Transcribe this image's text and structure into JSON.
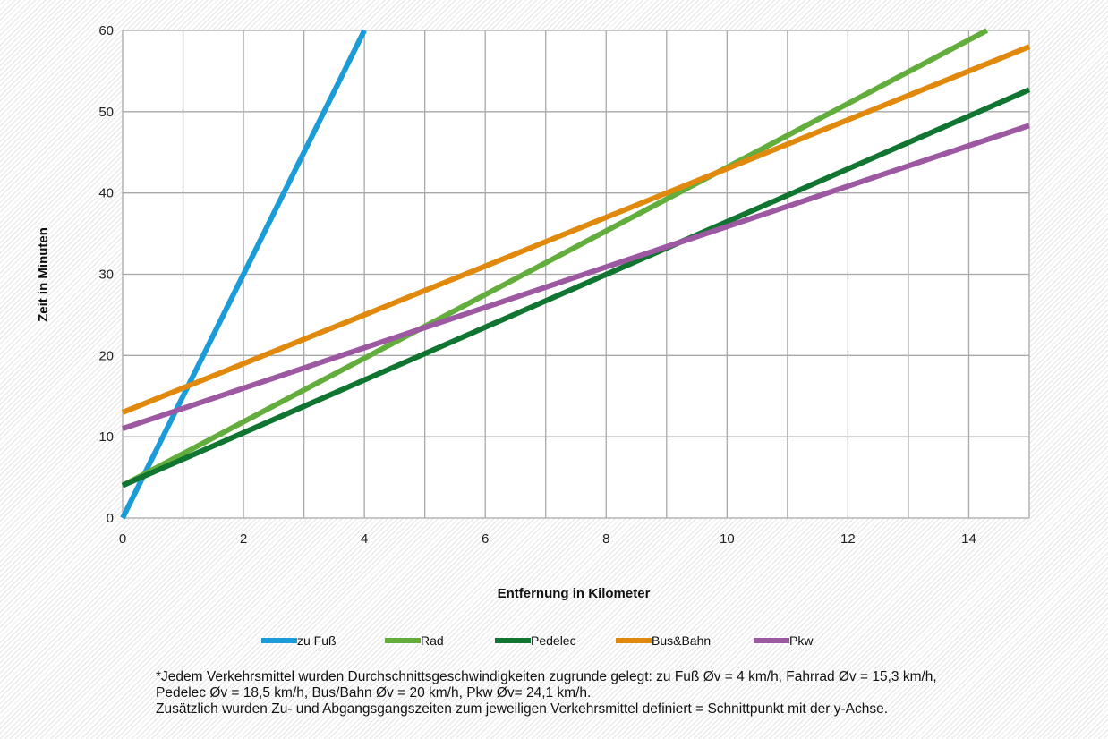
{
  "chart_data": {
    "type": "line",
    "title": "",
    "xlabel": "Entfernung in Kilometer",
    "ylabel": "Zeit in Minuten",
    "xlim": [
      0,
      15
    ],
    "ylim": [
      0,
      60
    ],
    "xticks": [
      0,
      2,
      4,
      6,
      8,
      10,
      12,
      14
    ],
    "yticks": [
      0,
      10,
      20,
      30,
      40,
      50,
      60
    ],
    "grid": true,
    "legend_position": "bottom",
    "series": [
      {
        "name": "zu Fuß",
        "color": "#1b9bd7",
        "x": [
          0,
          4
        ],
        "y": [
          0,
          60
        ]
      },
      {
        "name": "Rad",
        "color": "#62ad3c",
        "x": [
          0,
          14.3
        ],
        "y": [
          4,
          60
        ]
      },
      {
        "name": "Pedelec",
        "color": "#0f7530",
        "x": [
          0,
          15
        ],
        "y": [
          4,
          52.7
        ]
      },
      {
        "name": "Bus&Bahn",
        "color": "#e0890c",
        "x": [
          0,
          15
        ],
        "y": [
          13,
          58
        ]
      },
      {
        "name": "Pkw",
        "color": "#9c58a1",
        "x": [
          0,
          15
        ],
        "y": [
          11,
          48.3
        ]
      }
    ]
  },
  "footnote": {
    "line1": "*Jedem Verkehrsmittel wurden Durchschnittsgeschwindigkeiten zugrunde gelegt: zu Fuß Øv = 4 km/h, Fahrrad Øv = 15,3 km/h,",
    "line2": "Pedelec Øv = 18,5 km/h, Bus/Bahn Øv = 20 km/h, Pkw Øv= 24,1 km/h.",
    "line3": "Zusätzlich wurden Zu- und Abgangsgangszeiten zum jeweiligen Verkehrsmittel definiert = Schnittpunkt mit der y-Achse."
  }
}
